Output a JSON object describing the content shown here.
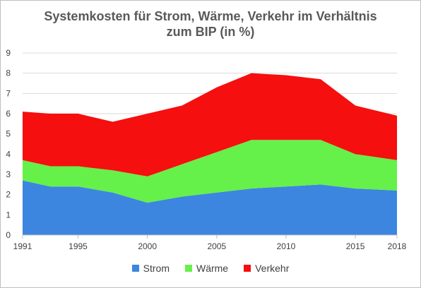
{
  "chart_data": {
    "type": "area",
    "stacked": true,
    "title_line1": "Systemkosten für Strom, Wärme, Verkehr im Verhältnis",
    "title_line2": "zum BIP (in %)",
    "ylim": [
      0,
      9
    ],
    "y_ticks": [
      "0",
      "1",
      "2",
      "3",
      "4",
      "5",
      "6",
      "7",
      "8",
      "9"
    ],
    "x_ticks": [
      {
        "year": 1991,
        "label": "1991"
      },
      {
        "year": 1995,
        "label": "1995"
      },
      {
        "year": 2000,
        "label": "2000"
      },
      {
        "year": 2005,
        "label": "2005"
      },
      {
        "year": 2010,
        "label": "2010"
      },
      {
        "year": 2015,
        "label": "2015"
      },
      {
        "year": 2018,
        "label": "2018"
      }
    ],
    "x": [
      1991,
      1993,
      1995,
      1997.5,
      2000,
      2002.5,
      2005,
      2007.5,
      2010,
      2012.5,
      2015,
      2018
    ],
    "series": [
      {
        "name": "Strom",
        "color": "#3c86e0",
        "values": [
          2.7,
          2.4,
          2.4,
          2.1,
          1.6,
          1.9,
          2.1,
          2.3,
          2.4,
          2.5,
          2.3,
          2.2
        ]
      },
      {
        "name": "Wärme",
        "color": "#66f04a",
        "values": [
          1.0,
          1.0,
          1.0,
          1.1,
          1.3,
          1.6,
          2.0,
          2.4,
          2.3,
          2.2,
          1.7,
          1.5
        ]
      },
      {
        "name": "Verkehr",
        "color": "#f50f0f",
        "values": [
          2.4,
          2.6,
          2.6,
          2.4,
          3.1,
          2.9,
          3.2,
          3.3,
          3.2,
          3.0,
          2.4,
          2.2
        ]
      }
    ],
    "grid": true,
    "legend_position": "bottom"
  }
}
